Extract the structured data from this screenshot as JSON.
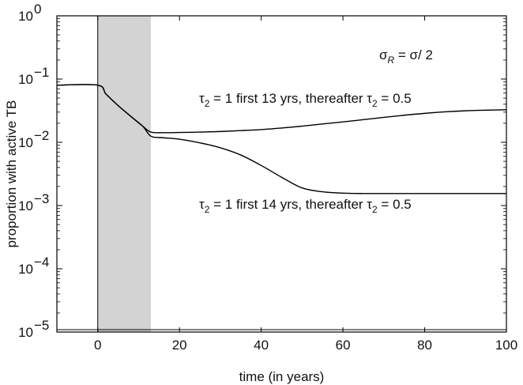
{
  "chart_data": {
    "type": "line",
    "xlabel": "time (in years)",
    "ylabel": "proportion with active TB",
    "xlim": [
      -10,
      100
    ],
    "ylim": [
      1e-05,
      1
    ],
    "yscale": "log",
    "grid": false,
    "x_ticks": [
      0,
      20,
      40,
      60,
      80,
      100
    ],
    "y_ticks": [
      {
        "value": 1,
        "base": "10",
        "exp": "0"
      },
      {
        "value": 0.1,
        "base": "10",
        "exp": "−1"
      },
      {
        "value": 0.01,
        "base": "10",
        "exp": "−2"
      },
      {
        "value": 0.001,
        "base": "10",
        "exp": "−3"
      },
      {
        "value": 0.0001,
        "base": "10",
        "exp": "−4"
      },
      {
        "value": 1e-05,
        "base": "10",
        "exp": "−5"
      }
    ],
    "shaded_region": {
      "x": [
        0,
        13
      ],
      "color": "#d3d3d3"
    },
    "series": [
      {
        "annotation": "13",
        "color": "#000000",
        "x": [
          -10,
          0,
          2,
          5,
          8,
          11,
          13,
          16,
          20,
          25,
          30,
          35,
          40,
          45,
          50,
          55,
          60,
          65,
          70,
          75,
          80,
          85,
          90,
          95,
          100
        ],
        "y": [
          0.08,
          0.08,
          0.058,
          0.038,
          0.026,
          0.018,
          0.0145,
          0.0142,
          0.0143,
          0.0145,
          0.0148,
          0.0153,
          0.0159,
          0.0168,
          0.018,
          0.0195,
          0.021,
          0.0228,
          0.0248,
          0.0268,
          0.0287,
          0.0303,
          0.0315,
          0.0322,
          0.0327
        ]
      },
      {
        "annotation": "14",
        "color": "#000000",
        "x": [
          -10,
          0,
          2,
          5,
          8,
          11,
          13,
          16,
          20,
          25,
          30,
          35,
          40,
          45,
          50,
          55,
          60,
          65,
          70,
          80,
          90,
          100
        ],
        "y": [
          0.08,
          0.08,
          0.058,
          0.038,
          0.026,
          0.018,
          0.0125,
          0.0118,
          0.0112,
          0.0098,
          0.0082,
          0.0063,
          0.0043,
          0.0028,
          0.0019,
          0.00165,
          0.00157,
          0.00155,
          0.00155,
          0.00155,
          0.00155,
          0.00155
        ]
      }
    ],
    "annotations": {
      "sigma_left": "σ",
      "sigma_sub": "R",
      "sigma_right": " = σ/ 2",
      "tau": "τ",
      "tau_sub": "2",
      "line13_mid": " = 1 first 13 yrs, thereafter ",
      "line14_mid": " = 1 first 14 yrs, thereafter ",
      "tail": " = 0.5"
    }
  }
}
